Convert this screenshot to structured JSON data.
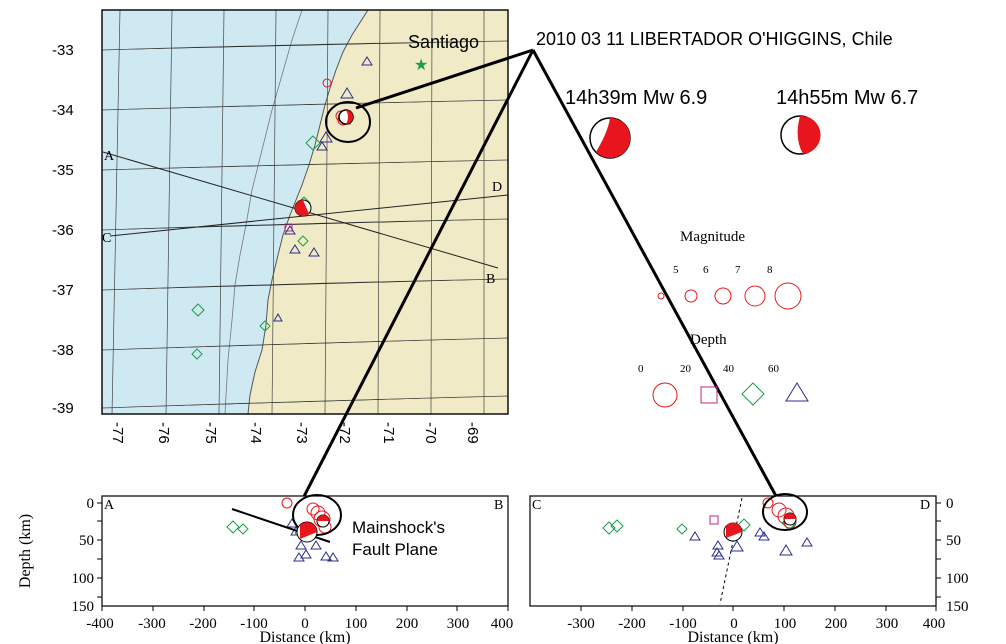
{
  "event_title": "2010 03 11 LIBERTADOR O'HIGGINS, Chile",
  "city": "Santiago",
  "mechanisms": [
    {
      "label": "14h39m Mw  6.9",
      "color": "#e8161c"
    },
    {
      "label": "14h55m Mw  6.7",
      "color": "#e8161c"
    }
  ],
  "map": {
    "lat_ticks": [
      "-33",
      "-34",
      "-35",
      "-36",
      "-37",
      "-38",
      "-39"
    ],
    "lon_ticks": [
      "-77",
      "-76",
      "-75",
      "-74",
      "-73",
      "-72",
      "-71",
      "-70",
      "-69"
    ],
    "profile_labels": [
      "A",
      "B",
      "C",
      "D"
    ],
    "ocean_color": "#cfe9f3",
    "land_color": "#f0ebc6"
  },
  "legend": {
    "magnitude_title": "Magnitude",
    "magnitudes": [
      "5",
      "6",
      "7",
      "8"
    ],
    "depth_title": "Depth",
    "depths": [
      "0",
      "20",
      "40",
      "60"
    ]
  },
  "sections": [
    {
      "left": "A",
      "right": "B",
      "xlabel": "Distance (km)",
      "ylabel": "Depth (km)",
      "xticks": [
        "-400",
        "-300",
        "-200",
        "-100",
        "0",
        "100",
        "200",
        "300",
        "400"
      ],
      "yticks": [
        "0",
        "50",
        "100",
        "150"
      ]
    },
    {
      "left": "C",
      "right": "D",
      "xlabel": "Distance (km)",
      "xticks": [
        "-300",
        "-200",
        "-100",
        "0",
        "100",
        "200",
        "300",
        "400"
      ],
      "yticks": [
        "0",
        "50",
        "100",
        "150"
      ]
    }
  ],
  "annotation": [
    "Mainshock's",
    "Fault Plane"
  ],
  "symbol_colors": {
    "shallow": "#e8161c",
    "mid": "#c2248a",
    "deep_green": "#1c9e48",
    "deepest": "#2c2f8c"
  }
}
